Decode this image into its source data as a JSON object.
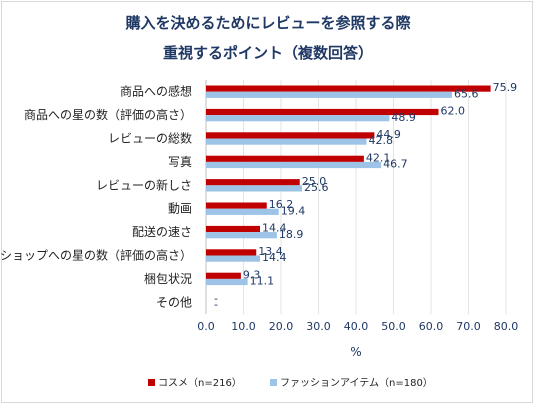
{
  "chart_data": {
    "type": "bar",
    "orientation": "horizontal",
    "title": "購入を決めるためにレビューを参照する際",
    "subtitle": "重視するポイント（複数回答）",
    "categories": [
      "商品への感想",
      "商品への星の数（評価の高さ）",
      "レビューの総数",
      "写真",
      "レビューの新しさ",
      "動画",
      "配送の速さ",
      "ショップへの星の数（評価の高さ）",
      "梱包状況",
      "その他"
    ],
    "series": [
      {
        "name": "コスメ（n=216）",
        "color": "#c00000",
        "values": [
          75.9,
          62.0,
          44.9,
          42.1,
          25.0,
          16.2,
          14.4,
          13.4,
          9.3,
          0.0
        ],
        "labels": [
          "75.9",
          "62.0",
          "44.9",
          "42.1",
          "25.0",
          "16.2",
          "14.4",
          "13.4",
          "9.3",
          "-"
        ]
      },
      {
        "name": "ファッションアイテム（n=180）",
        "color": "#9dc3e6",
        "values": [
          65.6,
          48.9,
          42.8,
          46.7,
          25.6,
          19.4,
          18.9,
          14.4,
          11.1,
          0.0
        ],
        "labels": [
          "65.6",
          "48.9",
          "42.8",
          "46.7",
          "25.6",
          "19.4",
          "18.9",
          "14.4",
          "11.1",
          "-"
        ]
      }
    ],
    "xlim": [
      0,
      80
    ],
    "xticks": [
      "0.0",
      "10.0",
      "20.0",
      "30.0",
      "40.0",
      "50.0",
      "60.0",
      "70.0",
      "80.0"
    ],
    "xlabel": "%",
    "ylabel": "",
    "grid": true,
    "legend_position": "bottom"
  }
}
